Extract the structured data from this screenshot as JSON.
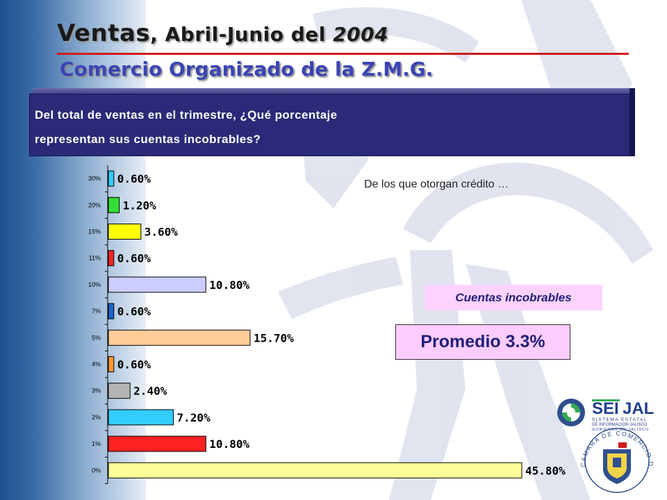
{
  "header": {
    "title_part1": "Ventas",
    "title_part2": ", Abril-Junio del ",
    "title_year": "2004",
    "subtitle": "Comercio Organizado de la Z.M.G."
  },
  "question": {
    "line1": "Del total de ventas en el trimestre, ¿Qué porcentaje",
    "line2": "representan sus cuentas incobrables?"
  },
  "note": "De los que otorgan crédito …",
  "cuentas_label": "Cuentas incobrables",
  "promedio_label": "Promedio 3.3%",
  "logos": {
    "seijal_name_a": "SEI",
    "seijal_name_b": "JAL",
    "seijal_line1": "SISTEMA ESTATAL",
    "seijal_line2": "DE INFORMACIÓN JALISCO",
    "seijal_line3": "GOBIERNO DE JALISCO",
    "camara_text": "CAMARA DE COMERCIO DE GUADALAJARA"
  },
  "colors": {
    "title_rule": "#d01b1b",
    "subtitle": "#3b45b4",
    "question_bg": "#2a2a78",
    "highlight_bg": "#ffccff"
  },
  "chart_data": {
    "type": "bar",
    "orientation": "horizontal",
    "categories": [
      "30%",
      "20%",
      "15%",
      "11%",
      "10%",
      "7%",
      "5%",
      "4%",
      "3%",
      "2%",
      "1%",
      "0%"
    ],
    "values": [
      0.6,
      1.2,
      3.6,
      0.6,
      10.8,
      0.6,
      15.7,
      0.6,
      2.4,
      7.2,
      10.8,
      45.8
    ],
    "data_labels": [
      "0.60%",
      "1.20%",
      "3.60%",
      "0.60%",
      "10.80%",
      "0.60%",
      "15.70%",
      "0.60%",
      "2.40%",
      "7.20%",
      "10.80%",
      "45.80%"
    ],
    "bar_colors": [
      "#33ccff",
      "#33dd33",
      "#ffff00",
      "#ff2222",
      "#ccccff",
      "#1a66cc",
      "#ffcc99",
      "#ff9933",
      "#b3b3b3",
      "#33ccff",
      "#ff2222",
      "#ffff99"
    ],
    "xlim": [
      0,
      45.8
    ],
    "grid": false,
    "legend": "none"
  }
}
